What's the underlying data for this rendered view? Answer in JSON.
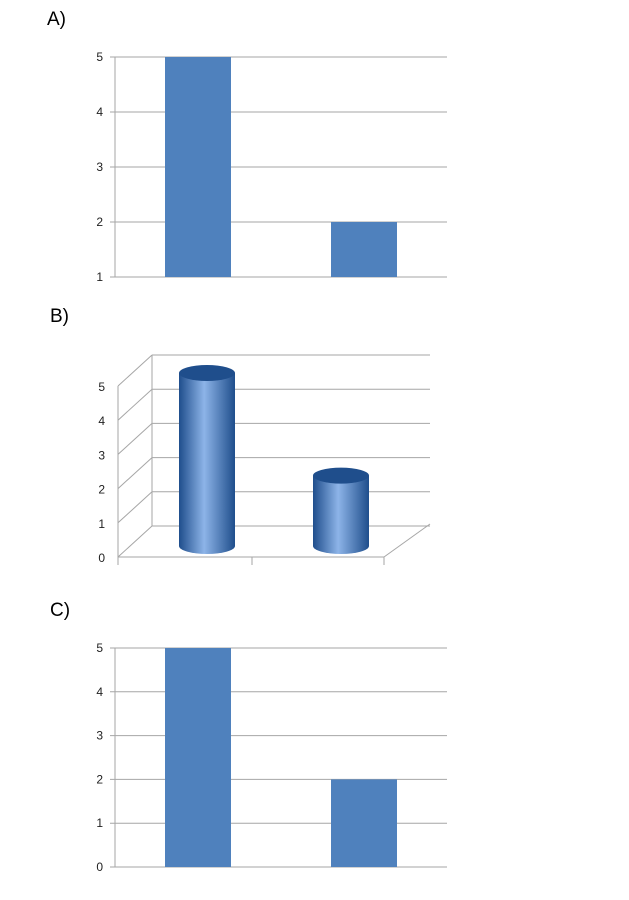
{
  "panels": [
    {
      "label": "A)"
    },
    {
      "label": "B)"
    },
    {
      "label": "C)"
    }
  ],
  "colors": {
    "bar": "#4f81bd",
    "cylinder_dark": "#1f4e8c",
    "cylinder_light": "#8db4e8",
    "grid": "#a6a6a6"
  },
  "chart_data": [
    {
      "type": "bar",
      "categories": [
        "",
        ""
      ],
      "values": [
        5,
        2
      ],
      "ylim": [
        1,
        5
      ],
      "yticks": [
        1,
        2,
        3,
        4,
        5
      ],
      "grid": true,
      "title": "",
      "xlabel": "",
      "ylabel": ""
    },
    {
      "type": "bar",
      "style": "3d-cylinder",
      "categories": [
        "",
        ""
      ],
      "values": [
        5,
        2
      ],
      "ylim": [
        0,
        5
      ],
      "yticks": [
        0,
        1,
        2,
        3,
        4,
        5
      ],
      "grid": true,
      "title": "",
      "xlabel": "",
      "ylabel": ""
    },
    {
      "type": "bar",
      "categories": [
        "",
        ""
      ],
      "values": [
        5,
        2
      ],
      "ylim": [
        0,
        5
      ],
      "yticks": [
        0,
        1,
        2,
        3,
        4,
        5
      ],
      "grid": true,
      "title": "",
      "xlabel": "",
      "ylabel": ""
    }
  ]
}
